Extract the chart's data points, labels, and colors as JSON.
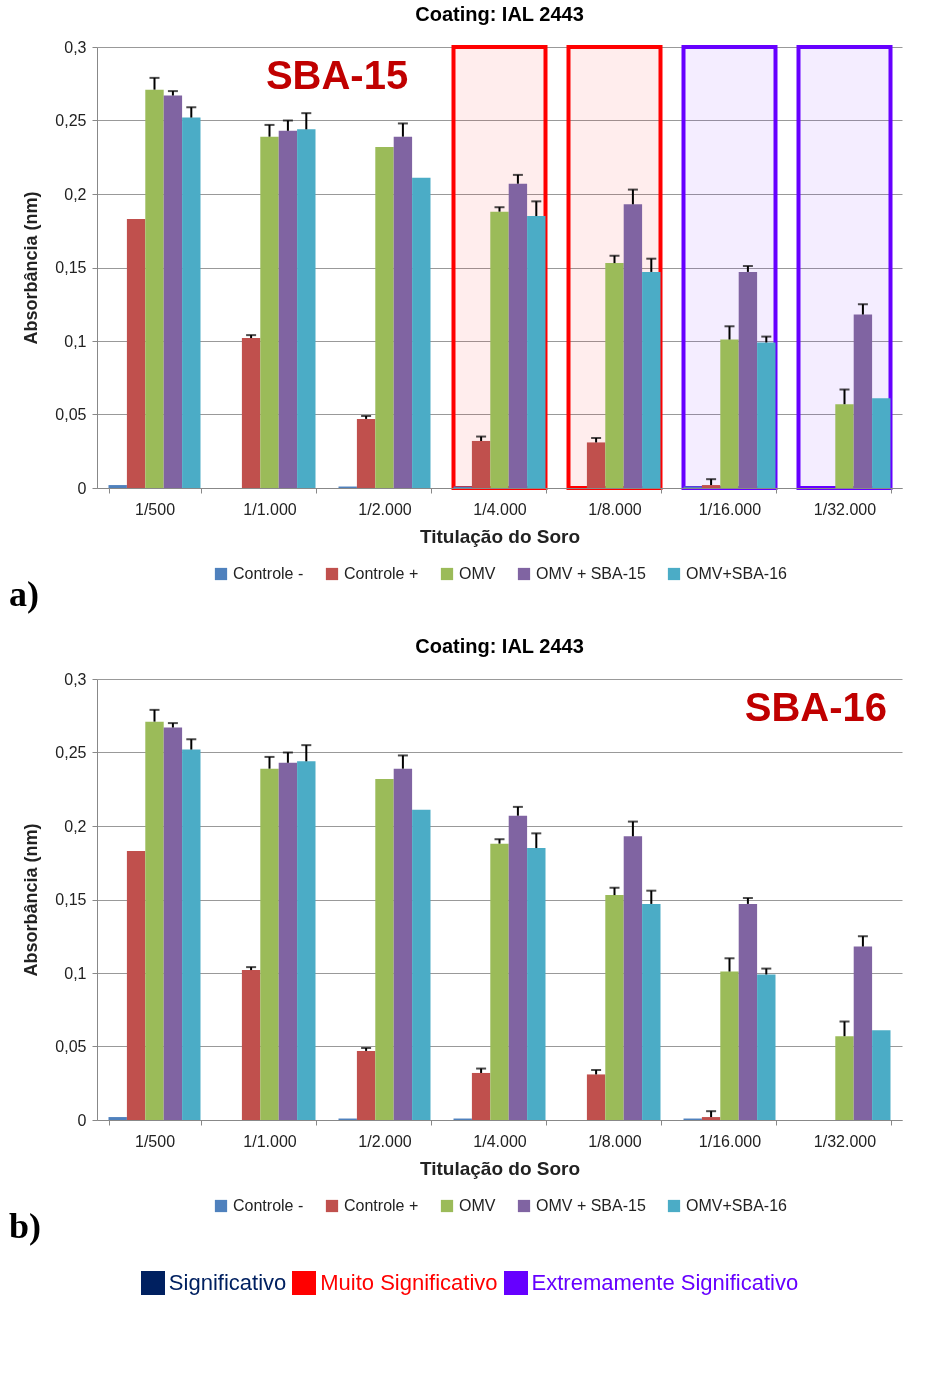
{
  "chart_data": [
    {
      "type": "bar",
      "title": "Coating: IAL 2443",
      "xlabel": "Titulação do Soro",
      "ylabel": "Absorbância (nm)",
      "categories": [
        "1/500",
        "1/1.000",
        "1/2.000",
        "1/4.000",
        "1/8.000",
        "1/16.000",
        "1/32.000"
      ],
      "series": [
        {
          "name": "Controle -",
          "color": "#4f81bd",
          "values": [
            0.002,
            0,
            0.001,
            0.001,
            0,
            0.001,
            0
          ]
        },
        {
          "name": "Controle +",
          "color": "#c0504d",
          "values": [
            0.183,
            0.102,
            0.047,
            0.032,
            0.031,
            0.002,
            0
          ],
          "errors": [
            null,
            [
              0.102,
              0.104
            ],
            [
              0.047,
              0.049
            ],
            [
              0.032,
              0.035
            ],
            [
              0.031,
              0.034
            ],
            [
              0.002,
              0.006
            ],
            null
          ]
        },
        {
          "name": "OMV",
          "color": "#9bbb59",
          "values": [
            0.271,
            0.239,
            0.232,
            0.188,
            0.153,
            0.101,
            0.057
          ],
          "errors": [
            [
              0.271,
              0.279
            ],
            [
              0.239,
              0.247
            ],
            null,
            [
              0.188,
              0.191
            ],
            [
              0.153,
              0.158
            ],
            [
              0.101,
              0.11
            ],
            [
              0.057,
              0.067
            ]
          ]
        },
        {
          "name": "OMV + SBA-15",
          "color": "#8064a2",
          "values": [
            0.267,
            0.243,
            0.239,
            0.207,
            0.193,
            0.147,
            0.118
          ],
          "errors": [
            [
              0.267,
              0.27
            ],
            [
              0.243,
              0.25
            ],
            [
              0.239,
              0.248
            ],
            [
              0.207,
              0.213
            ],
            [
              0.193,
              0.203
            ],
            [
              0.147,
              0.151
            ],
            [
              0.118,
              0.125
            ]
          ]
        },
        {
          "name": "OMV+SBA-16",
          "color": "#4bacc6",
          "values": [
            0.252,
            0.244,
            0.211,
            0.185,
            0.147,
            0.099,
            0.061
          ],
          "errors": [
            [
              0.252,
              0.259
            ],
            [
              0.244,
              0.255
            ],
            null,
            [
              0.185,
              0.195
            ],
            [
              0.147,
              0.156
            ],
            [
              0.099,
              0.103
            ],
            null
          ]
        }
      ],
      "ylim": [
        0,
        0.3
      ],
      "yticks": [
        {
          "value": 0,
          "label": "0"
        },
        {
          "value": 0.05,
          "label": "0,05"
        },
        {
          "value": 0.1,
          "label": "0,1"
        },
        {
          "value": 0.15,
          "label": "0,15"
        },
        {
          "value": 0.2,
          "label": "0,2"
        },
        {
          "value": 0.25,
          "label": "0,25"
        },
        {
          "value": 0.3,
          "label": "0,3"
        }
      ],
      "grid": "y",
      "legend": "bottom",
      "bands": [
        {
          "axis": "x",
          "from": "1/4.000",
          "to": "1/4.000",
          "color": "#ff0000"
        },
        {
          "axis": "x",
          "from": "1/8.000",
          "to": "1/8.000",
          "color": "#ff0000"
        },
        {
          "axis": "x",
          "from": "1/16.000",
          "to": "1/16.000",
          "color": "#6600ff"
        },
        {
          "axis": "x",
          "from": "1/32.000",
          "to": "1/32.000",
          "color": "#6600ff"
        }
      ],
      "annotations": [
        "SBA-15",
        "a)"
      ]
    },
    {
      "type": "bar",
      "title": "Coating: IAL 2443",
      "xlabel": "Titulação do Soro",
      "ylabel": "Absorbância (nm)",
      "categories": [
        "1/500",
        "1/1.000",
        "1/2.000",
        "1/4.000",
        "1/8.000",
        "1/16.000",
        "1/32.000"
      ],
      "series": [
        {
          "name": "Controle -",
          "color": "#4f81bd",
          "values": [
            0.002,
            0,
            0.001,
            0.001,
            0,
            0.001,
            0
          ]
        },
        {
          "name": "Controle +",
          "color": "#c0504d",
          "values": [
            0.183,
            0.102,
            0.047,
            0.032,
            0.031,
            0.002,
            0
          ],
          "errors": [
            null,
            [
              0.102,
              0.104
            ],
            [
              0.047,
              0.049
            ],
            [
              0.032,
              0.035
            ],
            [
              0.031,
              0.034
            ],
            [
              0.002,
              0.006
            ],
            null
          ]
        },
        {
          "name": "OMV",
          "color": "#9bbb59",
          "values": [
            0.271,
            0.239,
            0.232,
            0.188,
            0.153,
            0.101,
            0.057
          ],
          "errors": [
            [
              0.271,
              0.279
            ],
            [
              0.239,
              0.247
            ],
            null,
            [
              0.188,
              0.191
            ],
            [
              0.153,
              0.158
            ],
            [
              0.101,
              0.11
            ],
            [
              0.057,
              0.067
            ]
          ]
        },
        {
          "name": "OMV + SBA-15",
          "color": "#8064a2",
          "values": [
            0.267,
            0.243,
            0.239,
            0.207,
            0.193,
            0.147,
            0.118
          ],
          "errors": [
            [
              0.267,
              0.27
            ],
            [
              0.243,
              0.25
            ],
            [
              0.239,
              0.248
            ],
            [
              0.207,
              0.213
            ],
            [
              0.193,
              0.203
            ],
            [
              0.147,
              0.151
            ],
            [
              0.118,
              0.125
            ]
          ]
        },
        {
          "name": "OMV+SBA-16",
          "color": "#4bacc6",
          "values": [
            0.252,
            0.244,
            0.211,
            0.185,
            0.147,
            0.099,
            0.061
          ],
          "errors": [
            [
              0.252,
              0.259
            ],
            [
              0.244,
              0.255
            ],
            null,
            [
              0.185,
              0.195
            ],
            [
              0.147,
              0.156
            ],
            [
              0.099,
              0.103
            ],
            null
          ]
        }
      ],
      "ylim": [
        0,
        0.3
      ],
      "yticks": [
        {
          "value": 0,
          "label": "0"
        },
        {
          "value": 0.05,
          "label": "0,05"
        },
        {
          "value": 0.1,
          "label": "0,1"
        },
        {
          "value": 0.15,
          "label": "0,15"
        },
        {
          "value": 0.2,
          "label": "0,2"
        },
        {
          "value": 0.25,
          "label": "0,25"
        },
        {
          "value": 0.3,
          "label": "0,3"
        }
      ],
      "grid": "y",
      "legend": "bottom",
      "annotations": [
        "SBA-16",
        "b)",
        "Significativo",
        "Muito Significativo",
        "Extremamente Significativo"
      ]
    }
  ]
}
